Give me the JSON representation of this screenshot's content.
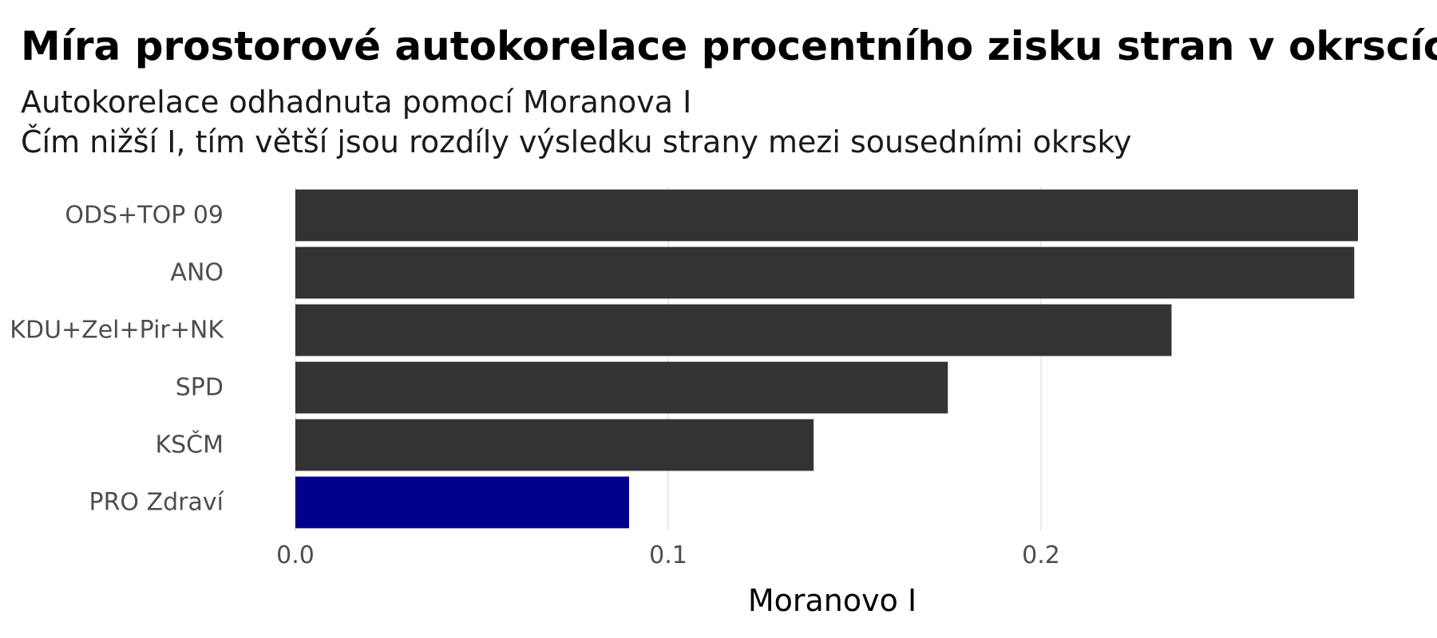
{
  "chart_data": {
    "type": "bar",
    "orientation": "horizontal",
    "title": "Míra prostorové autokorelace procentního zisku stran v okrscích",
    "subtitle": [
      "Autokorelace odhadnuta pomocí Moranova I",
      "Čím nižší I, tím větší jsou rozdíly výsledku strany mezi sousedními okrsky"
    ],
    "xlabel": "Moranovo I",
    "ylabel": "",
    "categories": [
      "ODS+TOP 09",
      "ANO",
      "KDU+Zel+Pir+NK",
      "SPD",
      "KSČM",
      "PRO Zdraví"
    ],
    "values": [
      0.285,
      0.284,
      0.235,
      0.175,
      0.139,
      0.0895
    ],
    "highlight_category": "PRO Zdraví",
    "xlim": [
      0,
      0.288
    ],
    "xticks": [
      0.0,
      0.1,
      0.2
    ],
    "xtick_labels": [
      "0.0",
      "0.1",
      "0.2"
    ],
    "grid": true,
    "legend": "none",
    "colors": {
      "bar": "#333333",
      "highlight": "#00008b",
      "grid": "#e5e5e5"
    }
  }
}
